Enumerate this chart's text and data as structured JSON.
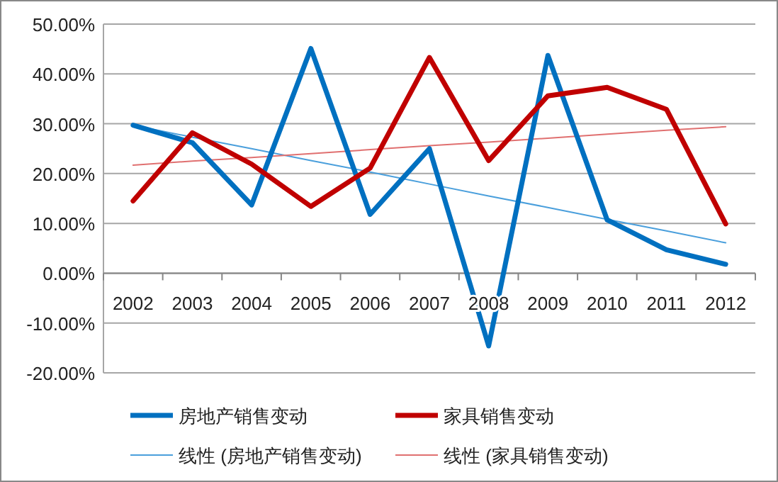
{
  "chart_data": {
    "type": "line",
    "categories": [
      "2002",
      "2003",
      "2004",
      "2005",
      "2006",
      "2007",
      "2008",
      "2009",
      "2010",
      "2011",
      "2012"
    ],
    "series": [
      {
        "name": "房地产销售变动",
        "color": "#0070c0",
        "values": [
          29.7,
          26.2,
          13.7,
          45.1,
          11.8,
          25.0,
          -14.6,
          43.7,
          10.7,
          4.7,
          1.8
        ]
      },
      {
        "name": "家具销售变动",
        "color": "#c00000",
        "values": [
          14.5,
          28.2,
          21.9,
          13.4,
          21.1,
          43.3,
          22.6,
          35.6,
          37.3,
          32.9,
          9.9
        ]
      },
      {
        "name": "线性 (房地产销售变动)",
        "color": "#4a9fdc",
        "values": [
          29.7,
          27.3,
          25.0,
          22.6,
          20.3,
          17.9,
          15.5,
          13.2,
          10.8,
          8.5,
          6.1
        ]
      },
      {
        "name": "线性 (家具销售变动)",
        "color": "#e07070",
        "values": [
          21.7,
          22.5,
          23.2,
          24.0,
          24.8,
          25.6,
          26.3,
          27.1,
          27.9,
          28.7,
          29.4
        ]
      }
    ],
    "ylim": [
      -20,
      50
    ],
    "yticks": [
      {
        "value": -20,
        "label": "-20.00%"
      },
      {
        "value": -10,
        "label": "-10.00%"
      },
      {
        "value": 0,
        "label": "0.00%"
      },
      {
        "value": 10,
        "label": "10.00%"
      },
      {
        "value": 20,
        "label": "20.00%"
      },
      {
        "value": 30,
        "label": "30.00%"
      },
      {
        "value": 40,
        "label": "40.00%"
      },
      {
        "value": 50,
        "label": "50.00%"
      }
    ],
    "grid": "y",
    "legend": "bottom",
    "marker": "none",
    "line_style": "solid"
  }
}
